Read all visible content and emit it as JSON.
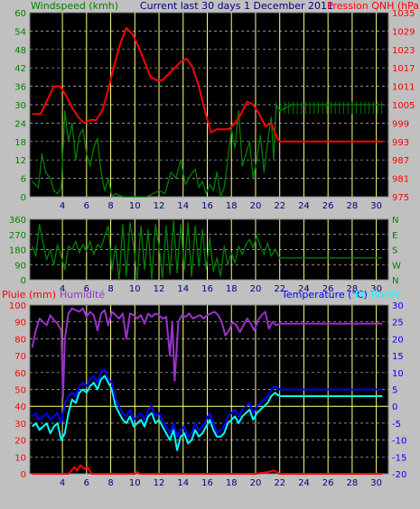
{
  "header": {
    "left": "Windspeed (kmh)",
    "center": "Current last 30 days 1 December 2011",
    "right": "Pression QNH (hPa"
  },
  "panel3": {
    "left1": "Pluie (mm)",
    "left2": "Humidité",
    "right1": "Temperature (°C)",
    "right2": "Pt. Rosée"
  },
  "colors": {
    "bg": "#c0c0c0",
    "plot": "#000000",
    "vgrid": "#ffff80",
    "hgrid": "#c0c0c0",
    "wind": "#008000",
    "pressure": "#ff0000",
    "humidity": "#9932cc",
    "temperature": "#0000ff",
    "dewpoint": "#00ffff",
    "rain": "#ff0000",
    "zeroline": "#ffff80"
  },
  "chart_data": [
    {
      "type": "line",
      "x_ticks": [
        4,
        6,
        8,
        10,
        12,
        14,
        16,
        18,
        20,
        22,
        24,
        26,
        28,
        30
      ],
      "x_range": [
        1.3,
        31
      ],
      "y_left": {
        "label": "Windspeed (kmh)",
        "ticks": [
          0,
          6,
          12,
          18,
          24,
          30,
          36,
          42,
          48,
          54,
          60
        ],
        "range": [
          0,
          60
        ]
      },
      "y_right": {
        "label": "Pression QNH (hPa",
        "ticks": [
          975,
          981,
          987,
          993,
          999,
          1005,
          1011,
          1017,
          1023,
          1029,
          1035
        ],
        "range": [
          975,
          1035
        ]
      },
      "series": [
        {
          "name": "Windspeed (kmh)",
          "axis": "left",
          "color": "#008000",
          "x": [
            1.5,
            2,
            2.3,
            2.6,
            3,
            3.3,
            3.6,
            3.9,
            4.2,
            4.5,
            4.8,
            5.1,
            5.4,
            5.7,
            6,
            6.3,
            6.6,
            6.9,
            7.2,
            7.5,
            7.8,
            8.1,
            8.4,
            9,
            10,
            11,
            12,
            12.5,
            13,
            13.4,
            13.8,
            14.2,
            14.6,
            15,
            15.3,
            15.6,
            15.9,
            16.2,
            16.5,
            16.8,
            17.1,
            17.4,
            17.7,
            18,
            18.3,
            18.6,
            18.9,
            19.2,
            19.5,
            19.8,
            20.1,
            20.4,
            20.7,
            21,
            21.3,
            21.5,
            21.7,
            22,
            23,
            24,
            25,
            26,
            27,
            28,
            29,
            30.5
          ],
          "values": [
            5,
            3,
            14,
            8,
            6,
            2,
            1,
            3,
            28,
            18,
            24,
            12,
            20,
            22,
            14,
            10,
            16,
            19,
            8,
            2,
            6,
            0,
            1,
            0,
            0,
            0,
            2,
            1,
            8,
            6,
            12,
            4,
            7,
            9,
            3,
            5,
            1,
            4,
            2,
            8,
            0,
            3,
            12,
            22,
            16,
            28,
            10,
            14,
            18,
            6,
            12,
            20,
            8,
            18,
            26,
            12,
            30,
            28,
            30,
            30,
            30,
            30,
            30,
            30,
            30,
            30
          ]
        },
        {
          "name": "Pression QNH (hPa",
          "axis": "right",
          "color": "#ff0000",
          "x": [
            1.5,
            2.2,
            2.8,
            3.3,
            3.8,
            4.3,
            4.8,
            5.3,
            5.8,
            6.3,
            6.8,
            7.3,
            7.8,
            8.3,
            8.8,
            9.3,
            9.8,
            10.3,
            10.8,
            11.3,
            11.8,
            12.3,
            12.8,
            13.3,
            13.8,
            14.3,
            14.8,
            15.3,
            15.8,
            16.3,
            16.8,
            17.3,
            17.8,
            18.3,
            18.8,
            19.3,
            19.8,
            20.3,
            20.8,
            21.3,
            21.8,
            22,
            24,
            26,
            28,
            30.5
          ],
          "values": [
            1002,
            1002,
            1007,
            1011,
            1011,
            1008,
            1004,
            1001,
            999,
            1000,
            1000,
            1003,
            1010,
            1018,
            1025,
            1030,
            1028,
            1024,
            1019,
            1014,
            1013,
            1013,
            1015,
            1017,
            1019,
            1020,
            1017,
            1011,
            1003,
            996,
            997,
            997,
            997,
            999,
            1002,
            1006,
            1005,
            1002,
            998,
            999,
            994,
            993,
            993,
            993,
            993,
            993
          ]
        }
      ]
    },
    {
      "type": "line",
      "x_ticks": [
        4,
        6,
        8,
        10,
        12,
        14,
        16,
        18,
        20,
        22,
        24,
        26,
        28,
        30
      ],
      "x_range": [
        1.3,
        31
      ],
      "y_left": {
        "ticks": [
          0,
          90,
          180,
          270,
          360
        ],
        "range": [
          0,
          360
        ]
      },
      "y_right": {
        "tick_labels": [
          "N",
          "W",
          "S",
          "E",
          "N"
        ]
      },
      "series": [
        {
          "name": "Wind direction",
          "color": "#008000",
          "x": [
            1.5,
            1.8,
            2.1,
            2.4,
            2.7,
            3,
            3.3,
            3.6,
            3.9,
            4.2,
            4.5,
            4.8,
            5.1,
            5.4,
            5.7,
            6,
            6.3,
            6.6,
            6.9,
            7.2,
            7.5,
            7.8,
            8.1,
            8.4,
            8.7,
            9,
            9.3,
            9.6,
            9.9,
            10.2,
            10.5,
            10.8,
            11.1,
            11.4,
            11.7,
            12,
            12.3,
            12.6,
            12.9,
            13.2,
            13.5,
            13.8,
            14.1,
            14.4,
            14.7,
            15,
            15.3,
            15.6,
            15.9,
            16.2,
            16.5,
            16.8,
            17.1,
            17.4,
            17.7,
            18,
            18.3,
            18.6,
            18.9,
            19.2,
            19.5,
            19.8,
            20.1,
            20.4,
            20.7,
            21,
            21.3,
            21.6,
            22,
            25,
            30.5
          ],
          "values": [
            200,
            140,
            330,
            220,
            120,
            180,
            90,
            210,
            140,
            60,
            200,
            180,
            230,
            160,
            210,
            170,
            230,
            150,
            210,
            190,
            260,
            320,
            60,
            200,
            0,
            330,
            20,
            340,
            200,
            0,
            320,
            60,
            300,
            0,
            330,
            200,
            10,
            320,
            30,
            350,
            40,
            330,
            60,
            340,
            20,
            320,
            80,
            300,
            60,
            250,
            50,
            130,
            20,
            200,
            90,
            160,
            100,
            200,
            150,
            210,
            240,
            190,
            260,
            200,
            150,
            220,
            140,
            180,
            130,
            130,
            130
          ]
        }
      ]
    },
    {
      "type": "line",
      "x_ticks": [
        4,
        6,
        8,
        10,
        12,
        14,
        16,
        18,
        20,
        22,
        24,
        26,
        28,
        30
      ],
      "x_range": [
        1.3,
        31
      ],
      "y_left": {
        "label": "Pluie (mm)",
        "ticks": [
          0,
          10,
          20,
          30,
          40,
          50,
          60,
          70,
          80,
          90,
          100
        ],
        "range": [
          0,
          100
        ]
      },
      "y_right": {
        "label": "Temperature (°C)",
        "ticks": [
          -20,
          -15,
          -10,
          -5,
          0,
          5,
          10,
          15,
          20,
          25,
          30
        ],
        "range": [
          -20,
          30
        ]
      },
      "series": [
        {
          "name": "Humidité",
          "axis": "left",
          "color": "#9932cc",
          "x": [
            1.5,
            1.8,
            2.1,
            2.4,
            2.7,
            3,
            3.3,
            3.6,
            3.9,
            4.05,
            4.2,
            4.5,
            4.8,
            5.1,
            5.4,
            5.7,
            6,
            6.3,
            6.6,
            6.9,
            7.2,
            7.5,
            7.8,
            8.1,
            8.4,
            8.7,
            9,
            9.3,
            9.6,
            9.9,
            10.2,
            10.5,
            10.8,
            11.1,
            11.4,
            11.7,
            12,
            12.3,
            12.6,
            12.9,
            13.1,
            13.3,
            13.6,
            13.9,
            14.2,
            14.5,
            14.8,
            15.1,
            15.4,
            15.7,
            16,
            16.3,
            16.6,
            16.9,
            17.2,
            17.5,
            17.8,
            18.1,
            18.4,
            18.7,
            19,
            19.3,
            19.6,
            19.9,
            20.2,
            20.5,
            20.8,
            21.1,
            21.4,
            21.7,
            22,
            25,
            30.5
          ],
          "values": [
            75,
            85,
            92,
            90,
            88,
            94,
            91,
            89,
            85,
            45,
            80,
            95,
            98,
            97,
            96,
            98,
            93,
            96,
            94,
            85,
            95,
            97,
            88,
            96,
            94,
            92,
            95,
            80,
            95,
            94,
            92,
            94,
            89,
            95,
            93,
            95,
            94,
            92,
            93,
            70,
            90,
            55,
            90,
            94,
            93,
            95,
            92,
            93,
            94,
            92,
            94,
            95,
            96,
            94,
            90,
            82,
            85,
            90,
            88,
            84,
            88,
            92,
            89,
            85,
            91,
            94,
            96,
            86,
            90,
            88,
            89,
            89,
            89
          ]
        },
        {
          "name": "Temperature (°C)",
          "axis": "right",
          "color": "#0000ff",
          "x": [
            1.5,
            1.8,
            2.1,
            2.4,
            2.7,
            3,
            3.3,
            3.6,
            3.9,
            4.2,
            4.5,
            4.8,
            5.1,
            5.4,
            5.7,
            6,
            6.3,
            6.6,
            6.9,
            7.2,
            7.5,
            7.8,
            8.1,
            8.4,
            8.7,
            9,
            9.3,
            9.6,
            9.9,
            10.2,
            10.5,
            10.8,
            11.1,
            11.4,
            11.7,
            12,
            12.3,
            12.6,
            12.9,
            13.2,
            13.5,
            13.8,
            14.1,
            14.4,
            14.7,
            15,
            15.3,
            15.6,
            15.9,
            16.2,
            16.5,
            16.8,
            17.1,
            17.4,
            17.7,
            18,
            18.3,
            18.6,
            18.9,
            19.2,
            19.5,
            19.8,
            20.1,
            20.4,
            20.7,
            21,
            21.3,
            21.6,
            22,
            25,
            30.5
          ],
          "values": [
            -3,
            -2,
            -4,
            -3,
            -2,
            -4,
            -3,
            -2,
            -5,
            1,
            3,
            4,
            3,
            6,
            7,
            6,
            8,
            9,
            7,
            10,
            11,
            8,
            7,
            2,
            0,
            -2,
            -3,
            -1,
            -4,
            -3,
            -2,
            -4,
            -1,
            0,
            -3,
            -2,
            -4,
            -6,
            -8,
            -5,
            -9,
            -7,
            -6,
            -9,
            -8,
            -5,
            -7,
            -6,
            -4,
            -2,
            -5,
            -8,
            -7,
            -6,
            -3,
            -2,
            -1,
            -3,
            -1,
            0,
            1,
            -2,
            0,
            1,
            2,
            3,
            5,
            6,
            5,
            5,
            5
          ]
        },
        {
          "name": "Pt. Rosée",
          "axis": "right",
          "color": "#00ffff",
          "x": [
            1.5,
            1.8,
            2.1,
            2.4,
            2.7,
            3,
            3.3,
            3.6,
            3.9,
            4.2,
            4.5,
            4.8,
            5.1,
            5.4,
            5.7,
            6,
            6.3,
            6.6,
            6.9,
            7.2,
            7.5,
            7.8,
            8.1,
            8.4,
            8.7,
            9,
            9.3,
            9.6,
            9.9,
            10.2,
            10.5,
            10.8,
            11.1,
            11.4,
            11.7,
            12,
            12.3,
            12.6,
            12.9,
            13.2,
            13.5,
            13.8,
            14.1,
            14.4,
            14.7,
            15,
            15.3,
            15.6,
            15.9,
            16.2,
            16.5,
            16.8,
            17.1,
            17.4,
            17.7,
            18,
            18.3,
            18.6,
            18.9,
            19.2,
            19.5,
            19.8,
            20.1,
            20.4,
            20.7,
            21,
            21.3,
            21.6,
            22,
            25,
            30.5
          ],
          "values": [
            -6,
            -5,
            -7,
            -6,
            -5,
            -8,
            -6,
            -5,
            -10,
            -8,
            -2,
            2,
            1,
            4,
            5,
            4,
            6,
            7,
            5,
            8,
            9,
            7,
            5,
            0,
            -2,
            -4,
            -5,
            -3,
            -6,
            -5,
            -4,
            -6,
            -3,
            -2,
            -5,
            -4,
            -6,
            -8,
            -10,
            -7,
            -13,
            -9,
            -8,
            -11,
            -10,
            -7,
            -9,
            -8,
            -6,
            -4,
            -7,
            -9,
            -9,
            -8,
            -5,
            -4,
            -3,
            -5,
            -3,
            -2,
            -1,
            -4,
            -2,
            -1,
            0,
            1,
            3,
            4,
            3,
            3,
            3
          ]
        },
        {
          "name": "Pluie (mm)",
          "axis": "left",
          "color": "#ff0000",
          "x": [
            1.5,
            4.5,
            5,
            5.2,
            5.5,
            5.8,
            6.1,
            6.4,
            10,
            10.2,
            10.4,
            13,
            20,
            21,
            21.5,
            22,
            30.5
          ],
          "values": [
            0,
            0,
            4,
            2,
            5,
            3,
            4,
            0,
            0,
            1,
            0,
            0,
            0,
            1,
            2,
            0,
            0
          ]
        }
      ]
    }
  ]
}
